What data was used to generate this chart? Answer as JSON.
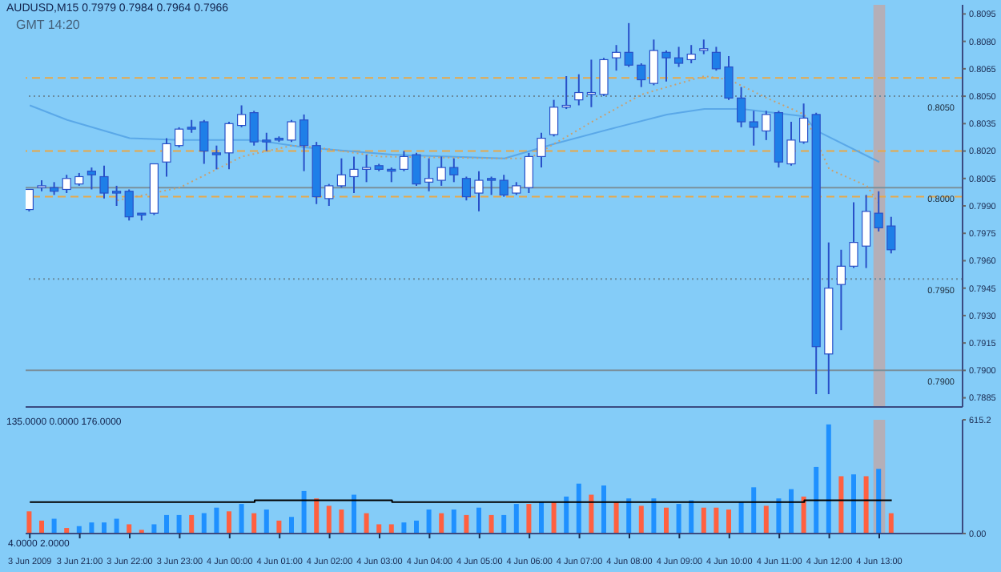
{
  "chart_data": [
    {
      "type": "candlestick",
      "title": "AUDUSD,M15 0.7979 0.7984 0.7964 0.7966",
      "annotations": [
        "GMT 14:20"
      ],
      "x": [
        "2009-06-03T20:00",
        "2009-06-03T20:15",
        "2009-06-03T20:30",
        "2009-06-03T20:45",
        "2009-06-03T21:00",
        "2009-06-03T21:15",
        "2009-06-03T21:30",
        "2009-06-03T21:45",
        "2009-06-03T22:00",
        "2009-06-03T22:15",
        "2009-06-03T22:30",
        "2009-06-03T22:45",
        "2009-06-03T23:00",
        "2009-06-03T23:15",
        "2009-06-03T23:30",
        "2009-06-03T23:45",
        "2009-06-04T00:00",
        "2009-06-04T00:15",
        "2009-06-04T00:30",
        "2009-06-04T00:45",
        "2009-06-04T01:00",
        "2009-06-04T01:15",
        "2009-06-04T01:30",
        "2009-06-04T01:45",
        "2009-06-04T02:00",
        "2009-06-04T02:15",
        "2009-06-04T02:30",
        "2009-06-04T02:45",
        "2009-06-04T03:00",
        "2009-06-04T03:15",
        "2009-06-04T03:30",
        "2009-06-04T03:45",
        "2009-06-04T04:00",
        "2009-06-04T04:15",
        "2009-06-04T04:30",
        "2009-06-04T04:45",
        "2009-06-04T05:00",
        "2009-06-04T05:15",
        "2009-06-04T05:30",
        "2009-06-04T05:45",
        "2009-06-04T06:00",
        "2009-06-04T06:15",
        "2009-06-04T06:30",
        "2009-06-04T06:45",
        "2009-06-04T07:00",
        "2009-06-04T07:15",
        "2009-06-04T07:30",
        "2009-06-04T07:45",
        "2009-06-04T08:00",
        "2009-06-04T08:15",
        "2009-06-04T08:30",
        "2009-06-04T08:45",
        "2009-06-04T09:00",
        "2009-06-04T09:15",
        "2009-06-04T09:30",
        "2009-06-04T09:45",
        "2009-06-04T10:00",
        "2009-06-04T10:15",
        "2009-06-04T10:30",
        "2009-06-04T10:45",
        "2009-06-04T11:00",
        "2009-06-04T11:15",
        "2009-06-04T11:30",
        "2009-06-04T11:45",
        "2009-06-04T12:00",
        "2009-06-04T12:15",
        "2009-06-04T12:30",
        "2009-06-04T12:45",
        "2009-06-04T13:00",
        "2009-06-04T13:15"
      ],
      "ohlc": [
        [
          0.7988,
          0.7999,
          0.7987,
          0.7999
        ],
        [
          0.8,
          0.8004,
          0.7998,
          0.8001
        ],
        [
          0.8,
          0.8003,
          0.7996,
          0.7998
        ],
        [
          0.7999,
          0.8007,
          0.7997,
          0.8005
        ],
        [
          0.8002,
          0.8008,
          0.8001,
          0.8006
        ],
        [
          0.8009,
          0.8011,
          0.7999,
          0.8007
        ],
        [
          0.8006,
          0.8012,
          0.7994,
          0.7997
        ],
        [
          0.7998,
          0.8001,
          0.799,
          0.7997
        ],
        [
          0.7998,
          0.7999,
          0.7982,
          0.7984
        ],
        [
          0.7986,
          0.7986,
          0.7982,
          0.7985
        ],
        [
          0.7986,
          0.8013,
          0.7985,
          0.8013
        ],
        [
          0.8014,
          0.8027,
          0.8006,
          0.8024
        ],
        [
          0.8023,
          0.8033,
          0.8022,
          0.8032
        ],
        [
          0.8033,
          0.8037,
          0.803,
          0.8032
        ],
        [
          0.8036,
          0.8037,
          0.8013,
          0.802
        ],
        [
          0.8019,
          0.8023,
          0.801,
          0.8018
        ],
        [
          0.8019,
          0.8036,
          0.801,
          0.8035
        ],
        [
          0.8034,
          0.8045,
          0.8033,
          0.804
        ],
        [
          0.8041,
          0.8042,
          0.8023,
          0.8025
        ],
        [
          0.8026,
          0.803,
          0.802,
          0.8025
        ],
        [
          0.8027,
          0.8028,
          0.8025,
          0.8026
        ],
        [
          0.8026,
          0.8037,
          0.8025,
          0.8036
        ],
        [
          0.8037,
          0.804,
          0.8009,
          0.8023
        ],
        [
          0.8023,
          0.8025,
          0.7991,
          0.7995
        ],
        [
          0.7994,
          0.8002,
          0.799,
          0.8001
        ],
        [
          0.8001,
          0.8016,
          0.8,
          0.8007
        ],
        [
          0.8006,
          0.8017,
          0.7997,
          0.801
        ],
        [
          0.801,
          0.8018,
          0.8003,
          0.8011
        ],
        [
          0.8012,
          0.8013,
          0.8009,
          0.801
        ],
        [
          0.801,
          0.8011,
          0.8003,
          0.8009
        ],
        [
          0.801,
          0.802,
          0.8009,
          0.8017
        ],
        [
          0.8018,
          0.8019,
          0.8001,
          0.8002
        ],
        [
          0.8003,
          0.8016,
          0.7998,
          0.8005
        ],
        [
          0.8004,
          0.8017,
          0.8001,
          0.8011
        ],
        [
          0.8011,
          0.8016,
          0.8003,
          0.8007
        ],
        [
          0.8005,
          0.8006,
          0.7993,
          0.7995
        ],
        [
          0.7997,
          0.8009,
          0.7987,
          0.8004
        ],
        [
          0.8005,
          0.8006,
          0.7996,
          0.8004
        ],
        [
          0.8004,
          0.8007,
          0.7995,
          0.7996
        ],
        [
          0.7997,
          0.8003,
          0.7996,
          0.8001
        ],
        [
          0.8,
          0.8019,
          0.7997,
          0.8017
        ],
        [
          0.8017,
          0.803,
          0.8011,
          0.8027
        ],
        [
          0.8029,
          0.8048,
          0.8028,
          0.8044
        ],
        [
          0.8044,
          0.8061,
          0.8043,
          0.8045
        ],
        [
          0.8048,
          0.8062,
          0.8045,
          0.8052
        ],
        [
          0.8051,
          0.807,
          0.8044,
          0.8052
        ],
        [
          0.8051,
          0.8071,
          0.805,
          0.807
        ],
        [
          0.8071,
          0.8078,
          0.8064,
          0.8074
        ],
        [
          0.8074,
          0.809,
          0.8066,
          0.8067
        ],
        [
          0.8067,
          0.8068,
          0.8055,
          0.8059
        ],
        [
          0.8057,
          0.8081,
          0.8056,
          0.8075
        ],
        [
          0.8074,
          0.8075,
          0.8058,
          0.8071
        ],
        [
          0.8071,
          0.8077,
          0.8066,
          0.8068
        ],
        [
          0.807,
          0.8078,
          0.8068,
          0.8073
        ],
        [
          0.8075,
          0.8081,
          0.8073,
          0.8076
        ],
        [
          0.8074,
          0.8077,
          0.8064,
          0.8065
        ],
        [
          0.8066,
          0.8072,
          0.8048,
          0.8049
        ],
        [
          0.8049,
          0.8055,
          0.8033,
          0.8036
        ],
        [
          0.8036,
          0.8042,
          0.8023,
          0.8033
        ],
        [
          0.8031,
          0.8042,
          0.8026,
          0.804
        ],
        [
          0.8041,
          0.8042,
          0.8011,
          0.8014
        ],
        [
          0.8013,
          0.8036,
          0.8012,
          0.8026
        ],
        [
          0.8025,
          0.8046,
          0.8024,
          0.8038
        ],
        [
          0.804,
          0.8041,
          0.7887,
          0.7913
        ],
        [
          0.7909,
          0.797,
          0.7887,
          0.7945
        ],
        [
          0.7947,
          0.7966,
          0.7922,
          0.7957
        ],
        [
          0.7957,
          0.7992,
          0.7956,
          0.797
        ],
        [
          0.7968,
          0.7996,
          0.7956,
          0.7987
        ],
        [
          0.7986,
          0.7998,
          0.7976,
          0.7978
        ],
        [
          0.7979,
          0.7984,
          0.7964,
          0.7966
        ]
      ],
      "colors": [
        "#ffffff",
        "#ffffff",
        "#1e7fe8",
        "#ffffff",
        "#ffffff",
        "#1e7fe8",
        "#1e7fe8",
        "#1e7fe8",
        "#1e7fe8",
        "#1e7fe8",
        "#ffffff",
        "#ffffff",
        "#ffffff",
        "#1e7fe8",
        "#1e7fe8",
        "#1e7fe8",
        "#ffffff",
        "#ffffff",
        "#1e7fe8",
        "#1e7fe8",
        "#1e7fe8",
        "#ffffff",
        "#1e7fe8",
        "#1e7fe8",
        "#ffffff",
        "#ffffff",
        "#ffffff",
        "#ffffff",
        "#1e7fe8",
        "#1e7fe8",
        "#ffffff",
        "#1e7fe8",
        "#ffffff",
        "#ffffff",
        "#1e7fe8",
        "#1e7fe8",
        "#ffffff",
        "#1e7fe8",
        "#1e7fe8",
        "#ffffff",
        "#ffffff",
        "#ffffff",
        "#ffffff",
        "#ffffff",
        "#ffffff",
        "#ffffff",
        "#ffffff",
        "#ffffff",
        "#1e7fe8",
        "#1e7fe8",
        "#ffffff",
        "#1e7fe8",
        "#1e7fe8",
        "#ffffff",
        "#ffffff",
        "#1e7fe8",
        "#1e7fe8",
        "#1e7fe8",
        "#1e7fe8",
        "#ffffff",
        "#1e7fe8",
        "#ffffff",
        "#ffffff",
        "#1e7fe8",
        "#ffffff",
        "#ffffff",
        "#ffffff",
        "#ffffff",
        "#1e7fe8",
        "#1e7fe8"
      ],
      "series": [
        {
          "type": "line",
          "color": "#5aa8e8",
          "x": [
            "2009-06-03T20:00",
            "2009-06-03T20:45",
            "2009-06-03T22:00",
            "2009-06-03T23:00",
            "2009-06-04T00:30",
            "2009-06-04T01:30",
            "2009-06-04T03:15",
            "2009-06-04T05:30",
            "2009-06-04T06:30",
            "2009-06-04T07:45",
            "2009-06-04T08:45",
            "2009-06-04T09:30",
            "2009-06-04T10:15",
            "2009-06-04T11:30",
            "2009-06-04T11:45",
            "2009-06-04T13:00"
          ],
          "values": [
            0.8045,
            0.8037,
            0.8027,
            0.8026,
            0.8026,
            0.8022,
            0.8018,
            0.8016,
            0.8024,
            0.8033,
            0.804,
            0.8043,
            0.8043,
            0.8039,
            0.8031,
            0.8014
          ]
        },
        {
          "type": "line",
          "color": "#c8a070",
          "line_style": "dotted",
          "x": [
            "2009-06-03T21:45",
            "2009-06-03T23:00",
            "2009-06-04T00:15",
            "2009-06-04T01:15",
            "2009-06-04T01:45",
            "2009-06-04T03:00",
            "2009-06-04T05:15",
            "2009-06-04T06:00",
            "2009-06-04T07:15",
            "2009-06-04T08:15",
            "2009-06-04T09:30",
            "2009-06-04T10:00",
            "2009-06-04T10:45",
            "2009-06-04T11:30",
            "2009-06-04T12:00",
            "2009-06-04T12:45",
            "2009-06-04T13:00"
          ],
          "values": [
            0.7993,
            0.8,
            0.8017,
            0.8023,
            0.8022,
            0.8017,
            0.8016,
            0.8016,
            0.8036,
            0.8051,
            0.8061,
            0.8059,
            0.8049,
            0.804,
            0.801,
            0.8001,
            0.7991
          ]
        }
      ],
      "xlim": [
        "2009-06-03T19:55",
        "2009-06-04T14:40"
      ],
      "ylim": [
        0.788,
        0.81
      ],
      "yticks": [
        0.8095,
        {
          "value": 0.808,
          "label": "0.8080"
        },
        0.8065,
        {
          "value": 0.805,
          "label": "0.8050"
        },
        0.8035,
        {
          "value": 0.802,
          "label": "0.8020"
        },
        0.8005,
        {
          "value": 0.799,
          "label": "0.7990"
        },
        0.7975,
        {
          "value": 0.796,
          "label": "0.7960"
        },
        0.7945,
        {
          "value": 0.793,
          "label": "0.7930"
        },
        0.7915,
        {
          "value": 0.79,
          "label": "0.7900"
        },
        0.7885
      ],
      "tick_labels": "y",
      "ref_lines": [
        {
          "axis": "y",
          "value": 0.806,
          "color": "#e8a848",
          "line_style": "dashed"
        },
        {
          "axis": "y",
          "value": 0.805,
          "label": "0.8050",
          "color": "#6a8ca0",
          "line_style": "dotted"
        },
        {
          "axis": "y",
          "value": 0.802,
          "color": "#e8a848",
          "line_style": "dashed"
        },
        {
          "axis": "y",
          "value": 0.8,
          "label": "0.8000",
          "color": "#7a909c",
          "line_style": "solid"
        },
        {
          "axis": "y",
          "value": 0.7995,
          "color": "#e8a848",
          "line_style": "dashed"
        },
        {
          "axis": "y",
          "value": 0.795,
          "label": "0.7950",
          "color": "#6a8ca0",
          "line_style": "dotted"
        },
        {
          "axis": "y",
          "value": 0.79,
          "label": "0.7900",
          "color": "#7a909c",
          "line_style": "solid"
        }
      ],
      "bands": [
        {
          "axis": "x",
          "from": "2009-06-04T12:53",
          "to": "2009-06-04T13:07",
          "color": "#c0a8a8"
        }
      ]
    },
    {
      "type": "bar",
      "annotations": [
        "135.0000 0.0000 176.0000",
        "4.0000 2.0000"
      ],
      "x": [
        "2009-06-03T20:00",
        "2009-06-03T20:15",
        "2009-06-03T20:30",
        "2009-06-03T20:45",
        "2009-06-03T21:00",
        "2009-06-03T21:15",
        "2009-06-03T21:30",
        "2009-06-03T21:45",
        "2009-06-03T22:00",
        "2009-06-03T22:15",
        "2009-06-03T22:30",
        "2009-06-03T22:45",
        "2009-06-03T23:00",
        "2009-06-03T23:15",
        "2009-06-03T23:30",
        "2009-06-03T23:45",
        "2009-06-04T00:00",
        "2009-06-04T00:15",
        "2009-06-04T00:30",
        "2009-06-04T00:45",
        "2009-06-04T01:00",
        "2009-06-04T01:15",
        "2009-06-04T01:30",
        "2009-06-04T01:45",
        "2009-06-04T02:00",
        "2009-06-04T02:15",
        "2009-06-04T02:30",
        "2009-06-04T02:45",
        "2009-06-04T03:00",
        "2009-06-04T03:15",
        "2009-06-04T03:30",
        "2009-06-04T03:45",
        "2009-06-04T04:00",
        "2009-06-04T04:15",
        "2009-06-04T04:30",
        "2009-06-04T04:45",
        "2009-06-04T05:00",
        "2009-06-04T05:15",
        "2009-06-04T05:30",
        "2009-06-04T05:45",
        "2009-06-04T06:00",
        "2009-06-04T06:15",
        "2009-06-04T06:30",
        "2009-06-04T06:45",
        "2009-06-04T07:00",
        "2009-06-04T07:15",
        "2009-06-04T07:30",
        "2009-06-04T07:45",
        "2009-06-04T08:00",
        "2009-06-04T08:15",
        "2009-06-04T08:30",
        "2009-06-04T08:45",
        "2009-06-04T09:00",
        "2009-06-04T09:15",
        "2009-06-04T09:30",
        "2009-06-04T09:45",
        "2009-06-04T10:00",
        "2009-06-04T10:15",
        "2009-06-04T10:30",
        "2009-06-04T10:45",
        "2009-06-04T11:00",
        "2009-06-04T11:15",
        "2009-06-04T11:30",
        "2009-06-04T11:45",
        "2009-06-04T12:00",
        "2009-06-04T12:15",
        "2009-06-04T12:30",
        "2009-06-04T12:45",
        "2009-06-04T13:00",
        "2009-06-04T13:15"
      ],
      "values": [
        120,
        70,
        80,
        30,
        40,
        60,
        60,
        80,
        50,
        20,
        50,
        100,
        100,
        100,
        110,
        140,
        120,
        160,
        110,
        130,
        70,
        90,
        230,
        190,
        150,
        130,
        210,
        110,
        50,
        50,
        60,
        70,
        130,
        110,
        130,
        100,
        140,
        100,
        100,
        160,
        160,
        170,
        170,
        200,
        270,
        210,
        260,
        170,
        190,
        150,
        190,
        140,
        160,
        180,
        140,
        140,
        130,
        170,
        250,
        150,
        190,
        240,
        200,
        360,
        590,
        310,
        320,
        310,
        350,
        110
      ],
      "colors": [
        "#ff6040",
        "#ff6040",
        "#1e90ff",
        "#ff6040",
        "#1e90ff",
        "#1e90ff",
        "#1e90ff",
        "#1e90ff",
        "#ff6040",
        "#ff6040",
        "#1e90ff",
        "#1e90ff",
        "#1e90ff",
        "#ff6040",
        "#1e90ff",
        "#1e90ff",
        "#ff6040",
        "#1e90ff",
        "#ff6040",
        "#1e90ff",
        "#ff6040",
        "#1e90ff",
        "#1e90ff",
        "#ff6040",
        "#ff6040",
        "#ff6040",
        "#1e90ff",
        "#ff6040",
        "#ff6040",
        "#ff6040",
        "#1e90ff",
        "#1e90ff",
        "#1e90ff",
        "#ff6040",
        "#1e90ff",
        "#ff6040",
        "#1e90ff",
        "#ff6040",
        "#1e90ff",
        "#1e90ff",
        "#ff6040",
        "#1e90ff",
        "#ff6040",
        "#1e90ff",
        "#1e90ff",
        "#ff6040",
        "#1e90ff",
        "#ff6040",
        "#1e90ff",
        "#ff6040",
        "#1e90ff",
        "#ff6040",
        "#1e90ff",
        "#1e90ff",
        "#ff6040",
        "#ff6040",
        "#ff6040",
        "#1e90ff",
        "#1e90ff",
        "#ff6040",
        "#1e90ff",
        "#1e90ff",
        "#ff6040",
        "#1e90ff",
        "#1e90ff",
        "#ff6040",
        "#1e90ff",
        "#ff6040",
        "#1e90ff",
        "#ff6040"
      ],
      "series": [
        {
          "type": "step",
          "color": "#000000",
          "x": [
            "2009-06-03T20:00",
            "2009-06-03T23:30",
            "2009-06-04T00:30",
            "2009-06-04T03:15",
            "2009-06-04T09:45",
            "2009-06-04T11:30",
            "2009-06-04T13:15"
          ],
          "values": [
            170,
            170,
            180,
            170,
            170,
            180,
            180
          ]
        }
      ],
      "xlim": [
        "2009-06-03T19:55",
        "2009-06-04T14:40"
      ],
      "xticks": [
        {
          "value": "2009-06-03T20:00",
          "label": "3 Jun 2009"
        },
        {
          "value": "2009-06-03T21:00",
          "label": "3 Jun 21:00"
        },
        {
          "value": "2009-06-03T22:00",
          "label": "3 Jun 22:00"
        },
        {
          "value": "2009-06-03T23:00",
          "label": "3 Jun 23:00"
        },
        {
          "value": "2009-06-04T00:00",
          "label": "4 Jun 00:00"
        },
        {
          "value": "2009-06-04T01:00",
          "label": "4 Jun 01:00"
        },
        {
          "value": "2009-06-04T02:00",
          "label": "4 Jun 02:00"
        },
        {
          "value": "2009-06-04T03:00",
          "label": "4 Jun 03:00"
        },
        {
          "value": "2009-06-04T04:00",
          "label": "4 Jun 04:00"
        },
        {
          "value": "2009-06-04T05:00",
          "label": "4 Jun 05:00"
        },
        {
          "value": "2009-06-04T06:00",
          "label": "4 Jun 06:00"
        },
        {
          "value": "2009-06-04T07:00",
          "label": "4 Jun 07:00"
        },
        {
          "value": "2009-06-04T08:00",
          "label": "4 Jun 08:00"
        },
        {
          "value": "2009-06-04T09:00",
          "label": "4 Jun 09:00"
        },
        {
          "value": "2009-06-04T10:00",
          "label": "4 Jun 10:00"
        },
        {
          "value": "2009-06-04T11:00",
          "label": "4 Jun 11:00"
        },
        {
          "value": "2009-06-04T12:00",
          "label": "4 Jun 12:00"
        },
        {
          "value": "2009-06-04T13:00",
          "label": "4 Jun 13:00"
        }
      ],
      "ylim": [
        0,
        615.2
      ],
      "yticks": [
        {
          "value": 0,
          "label": "0.00"
        },
        615.2
      ],
      "bands": [
        {
          "axis": "x",
          "from": "2009-06-04T12:53",
          "to": "2009-06-04T13:07",
          "color": "#c0a8a8"
        }
      ]
    }
  ]
}
